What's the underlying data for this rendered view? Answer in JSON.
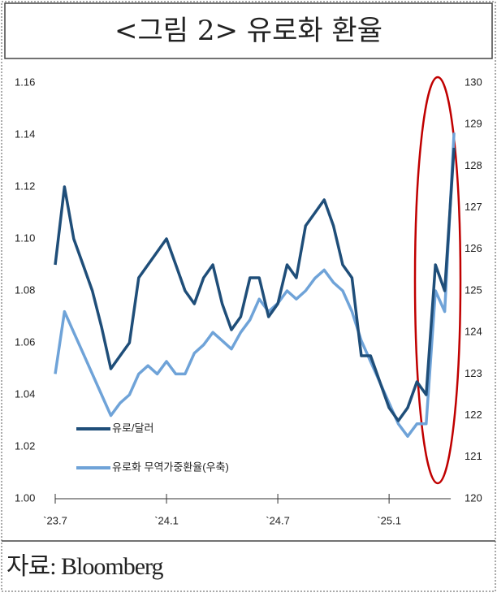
{
  "chart_data": {
    "type": "line",
    "title": "<그림 2> 유로화 환율",
    "source": "자료: Bloomberg",
    "categories": [
      "`23.7",
      null,
      null,
      null,
      null,
      null,
      null,
      null,
      null,
      null,
      null,
      null,
      "`24.1",
      null,
      null,
      null,
      null,
      null,
      null,
      null,
      null,
      null,
      null,
      null,
      "`24.7",
      null,
      null,
      null,
      null,
      null,
      null,
      null,
      null,
      null,
      null,
      null,
      "`25.1",
      null,
      null,
      null,
      null,
      null,
      null,
      null
    ],
    "series": [
      {
        "name": "유로/달러",
        "color": "#1f4e79",
        "axis": "y",
        "values": [
          1.09,
          1.12,
          1.1,
          1.09,
          1.08,
          1.066,
          1.05,
          1.055,
          1.06,
          1.085,
          1.09,
          1.095,
          1.1,
          1.09,
          1.08,
          1.075,
          1.085,
          1.09,
          1.075,
          1.065,
          1.07,
          1.085,
          1.085,
          1.07,
          1.075,
          1.09,
          1.085,
          1.105,
          1.11,
          1.115,
          1.105,
          1.09,
          1.085,
          1.055,
          1.055,
          1.045,
          1.035,
          1.03,
          1.035,
          1.045,
          1.04,
          1.09,
          1.08,
          1.135
        ]
      },
      {
        "name": "유로화 무역가중환율(우축)",
        "color": "#6fa3d8",
        "axis": "y2",
        "values": [
          123,
          124.5,
          124,
          123.5,
          123,
          122.5,
          122,
          122.3,
          122.5,
          123,
          123.2,
          123,
          123.3,
          123,
          123,
          123.5,
          123.7,
          124,
          123.8,
          123.6,
          124,
          124.3,
          124.8,
          124.5,
          124.7,
          125,
          124.8,
          125,
          125.3,
          125.5,
          125.2,
          125,
          124.5,
          123.8,
          123.3,
          122.8,
          122.3,
          121.8,
          121.5,
          121.8,
          121.8,
          125,
          124.5,
          128.8
        ]
      }
    ],
    "ylim": [
      1.0,
      1.16
    ],
    "yticks": [
      {
        "value": 1.0,
        "label": "1.00"
      },
      {
        "value": 1.02,
        "label": "1.02"
      },
      {
        "value": 1.04,
        "label": "1.04"
      },
      {
        "value": 1.06,
        "label": "1.06"
      },
      {
        "value": 1.08,
        "label": "1.08"
      },
      {
        "value": 1.1,
        "label": "1.10"
      },
      {
        "value": 1.12,
        "label": "1.12"
      },
      {
        "value": 1.14,
        "label": "1.14"
      },
      {
        "value": 1.16,
        "label": "1.16"
      }
    ],
    "y2lim": [
      120,
      130
    ],
    "y2ticks": [
      120,
      121,
      122,
      123,
      124,
      125,
      126,
      127,
      128,
      129,
      130
    ]
  }
}
